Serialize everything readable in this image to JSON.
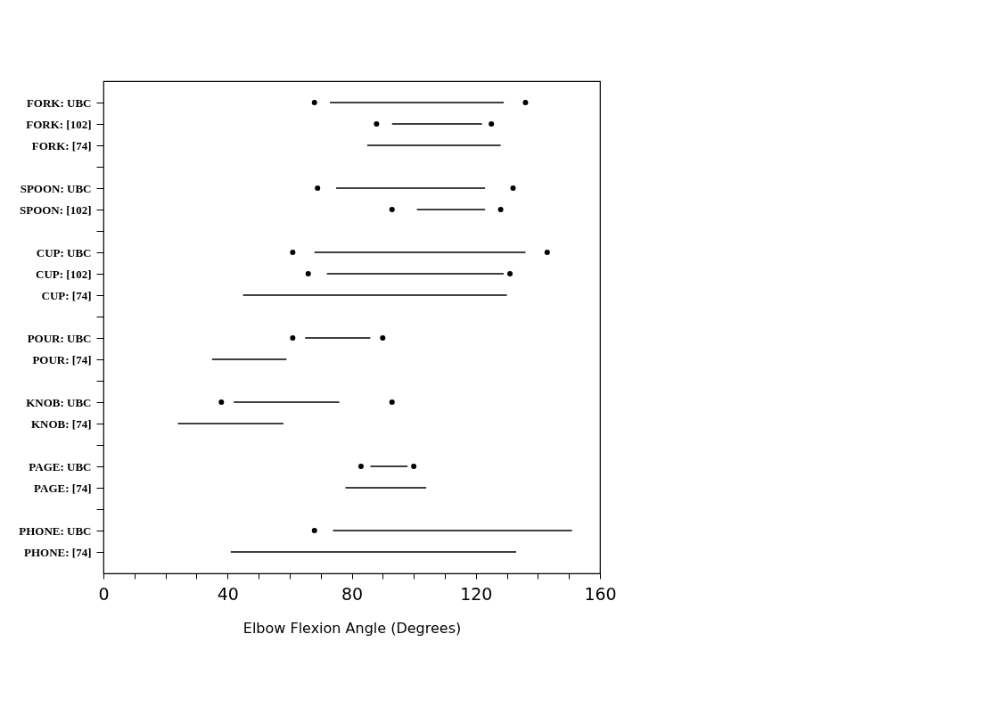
{
  "chart_data": {
    "type": "bar",
    "orientation": "horizontal",
    "xlabel": "Elbow Flexion Angle (Degrees)",
    "categories": [
      "FORK: UBC",
      "FORK: [102]",
      "FORK: [74]",
      null,
      "SPOON: UBC",
      "SPOON: [102]",
      null,
      "CUP: UBC",
      "CUP: [102]",
      "CUP: [74]",
      null,
      "POUR: UBC",
      "POUR: [74]",
      null,
      "KNOB: UBC",
      "KNOB: [74]",
      null,
      "PAGE: UBC",
      "PAGE: [74]",
      null,
      "PHONE: UBC",
      "PHONE: [74]"
    ],
    "series": [
      {
        "color": "#000000",
        "base": [
          73,
          93,
          85,
          null,
          75,
          101,
          null,
          68,
          72,
          45,
          null,
          65,
          35,
          null,
          42,
          24,
          null,
          86,
          78,
          null,
          74,
          41
        ],
        "values": [
          56,
          29,
          43,
          null,
          48,
          22,
          null,
          68,
          57,
          85,
          null,
          21,
          24,
          null,
          34,
          34,
          null,
          12,
          26,
          null,
          77,
          92
        ]
      },
      {
        "type": "scatter",
        "color": "#000000",
        "values": [
          68,
          88,
          null,
          null,
          69,
          93,
          null,
          61,
          66,
          null,
          null,
          61,
          null,
          null,
          38,
          null,
          null,
          83,
          null,
          null,
          68,
          null
        ]
      },
      {
        "type": "scatter",
        "color": "#000000",
        "values": [
          136,
          125,
          null,
          null,
          132,
          128,
          null,
          143,
          131,
          null,
          null,
          90,
          null,
          null,
          93,
          null,
          null,
          100,
          null,
          null,
          null,
          null
        ]
      }
    ],
    "marker": "circle",
    "xlim": [
      0,
      160
    ],
    "xticks": [
      0,
      {
        "value": 10,
        "label": null
      },
      {
        "value": 20,
        "label": null
      },
      {
        "value": 30,
        "label": null
      },
      40,
      {
        "value": 50,
        "label": null
      },
      {
        "value": 60,
        "label": null
      },
      {
        "value": 70,
        "label": null
      },
      80,
      {
        "value": 90,
        "label": null
      },
      {
        "value": 100,
        "label": null
      },
      {
        "value": 110,
        "label": null
      },
      120,
      {
        "value": 130,
        "label": null
      },
      {
        "value": 140,
        "label": null
      },
      {
        "value": 150,
        "label": null
      },
      160
    ],
    "grid": false
  }
}
